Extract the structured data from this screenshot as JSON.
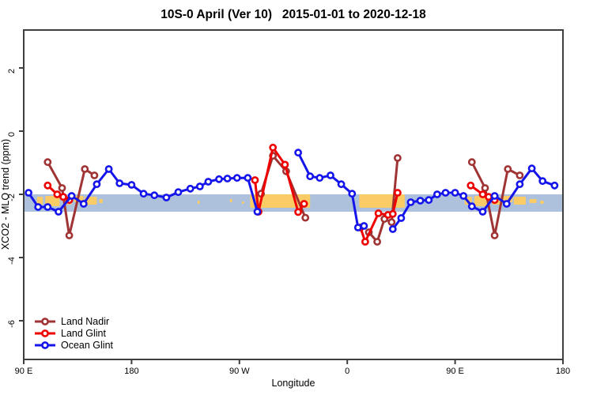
{
  "page": {
    "background": "#ffffff"
  },
  "chart_data": {
    "type": "line",
    "title": "10S-0 April (Ver 10)   2015-01-01 to 2020-12-18",
    "xlabel": "Longitude",
    "ylabel": "XCO2 - MLO trend (ppm)",
    "xlim": [
      90,
      540
    ],
    "ylim": [
      -7.225,
      3.2
    ],
    "grid": "off",
    "x_ticks": [
      {
        "lon": 90,
        "label": "90 E"
      },
      {
        "lon": 180,
        "label": "180"
      },
      {
        "lon": 270,
        "label": "90 W"
      },
      {
        "lon": 360,
        "label": "0"
      },
      {
        "lon": 450,
        "label": "90 E"
      },
      {
        "lon": 540,
        "label": "180"
      }
    ],
    "y_ticks": [
      {
        "value": 2,
        "label": "2"
      },
      {
        "value": 0,
        "label": "0"
      },
      {
        "value": -2,
        "label": "-2"
      },
      {
        "value": -4,
        "label": "-4"
      },
      {
        "value": -6,
        "label": "-6"
      }
    ],
    "band": {
      "from": -2.0,
      "to": -2.55,
      "color": "#ADC1DC"
    },
    "land_color": "#FBCC66",
    "land_patches": [
      [
        101,
        106,
        3,
        10
      ],
      [
        108,
        120,
        2,
        13
      ],
      [
        123,
        130,
        4,
        9
      ],
      [
        132,
        140,
        2,
        8
      ],
      [
        141,
        151,
        3,
        10
      ],
      [
        153,
        156,
        6,
        5
      ],
      [
        235,
        237,
        8,
        4
      ],
      [
        262,
        264,
        6,
        4
      ],
      [
        272,
        274,
        9,
        3
      ],
      [
        279,
        329,
        0,
        17
      ],
      [
        370,
        408,
        0,
        17
      ],
      [
        458,
        464,
        3,
        10
      ],
      [
        466,
        478,
        2,
        13
      ],
      [
        481,
        488,
        4,
        9
      ],
      [
        490,
        498,
        2,
        8
      ],
      [
        499,
        509,
        3,
        10
      ],
      [
        512,
        518,
        6,
        5
      ],
      [
        521,
        524,
        8,
        4
      ]
    ],
    "series": [
      {
        "name": "Land Nadir",
        "color": "#A03434",
        "segments": [
          [
            [
              110,
              -0.98
            ],
            [
              122,
              -1.8
            ],
            [
              128,
              -3.3
            ],
            [
              141,
              -1.2
            ],
            [
              149,
              -1.4
            ]
          ],
          [
            [
              288,
              -1.98
            ],
            [
              298,
              -0.78
            ],
            [
              309,
              -1.27
            ],
            [
              325,
              -2.74
            ]
          ],
          [
            [
              378,
              -3.2
            ],
            [
              385,
              -3.5
            ],
            [
              391,
              -2.78
            ],
            [
              397,
              -2.88
            ],
            [
              402,
              -0.85
            ]
          ],
          [
            [
              464,
              -0.98
            ],
            [
              475,
              -1.8
            ],
            [
              483,
              -3.3
            ],
            [
              494,
              -1.2
            ],
            [
              504,
              -1.4
            ]
          ]
        ]
      },
      {
        "name": "Land Glint",
        "color": "#EE0000",
        "segments": [
          [
            [
              110,
              -1.72
            ],
            [
              118,
              -2.0
            ],
            [
              123,
              -2.08
            ],
            [
              128,
              -2.18
            ]
          ],
          [
            [
              283,
              -1.55
            ],
            [
              286,
              -2.55
            ],
            [
              298,
              -0.52
            ],
            [
              308,
              -1.06
            ],
            [
              319,
              -2.56
            ],
            [
              324,
              -2.3
            ]
          ],
          [
            [
              371,
              -3.05
            ],
            [
              375,
              -3.5
            ],
            [
              386,
              -2.6
            ],
            [
              394,
              -2.65
            ],
            [
              398,
              -2.62
            ],
            [
              402,
              -1.95
            ]
          ],
          [
            [
              463,
              -1.72
            ],
            [
              473,
              -2.0
            ],
            [
              478,
              -2.08
            ],
            [
              483,
              -2.18
            ]
          ]
        ]
      },
      {
        "name": "Ocean Glint",
        "color": "#1414EB",
        "segments": [
          [
            [
              94,
              -1.95
            ],
            [
              102,
              -2.4
            ],
            [
              110,
              -2.4
            ],
            [
              119,
              -2.55
            ],
            [
              130,
              -2.05
            ],
            [
              140,
              -2.3
            ],
            [
              151,
              -1.68
            ],
            [
              161,
              -1.2
            ],
            [
              170,
              -1.65
            ],
            [
              180,
              -1.7
            ],
            [
              190,
              -1.98
            ],
            [
              199,
              -2.03
            ],
            [
              209,
              -2.1
            ],
            [
              219,
              -1.93
            ],
            [
              229,
              -1.82
            ],
            [
              237,
              -1.75
            ],
            [
              244,
              -1.6
            ],
            [
              253,
              -1.52
            ],
            [
              260,
              -1.5
            ],
            [
              268,
              -1.48
            ],
            [
              277,
              -1.48
            ],
            [
              285,
              -2.55
            ]
          ],
          [
            [
              319,
              -0.68
            ],
            [
              329,
              -1.43
            ],
            [
              337,
              -1.48
            ],
            [
              346,
              -1.4
            ],
            [
              355,
              -1.68
            ],
            [
              364,
              -1.98
            ],
            [
              369,
              -3.05
            ],
            [
              374,
              -3.0
            ]
          ],
          [
            [
              398,
              -3.1
            ],
            [
              405,
              -2.75
            ],
            [
              413,
              -2.25
            ],
            [
              421,
              -2.2
            ],
            [
              428,
              -2.18
            ],
            [
              435,
              -2.0
            ],
            [
              442,
              -1.95
            ],
            [
              450,
              -1.95
            ],
            [
              457,
              -2.05
            ],
            [
              464,
              -2.38
            ],
            [
              473,
              -2.55
            ],
            [
              483,
              -2.05
            ],
            [
              493,
              -2.3
            ],
            [
              504,
              -1.68
            ],
            [
              514,
              -1.18
            ],
            [
              523,
              -1.58
            ],
            [
              533,
              -1.72
            ]
          ]
        ]
      }
    ],
    "legend": {
      "position": "bottom-left",
      "entries": [
        "Land Nadir",
        "Land Glint",
        "Ocean Glint"
      ]
    },
    "frame_color": "#3F3F3F"
  }
}
